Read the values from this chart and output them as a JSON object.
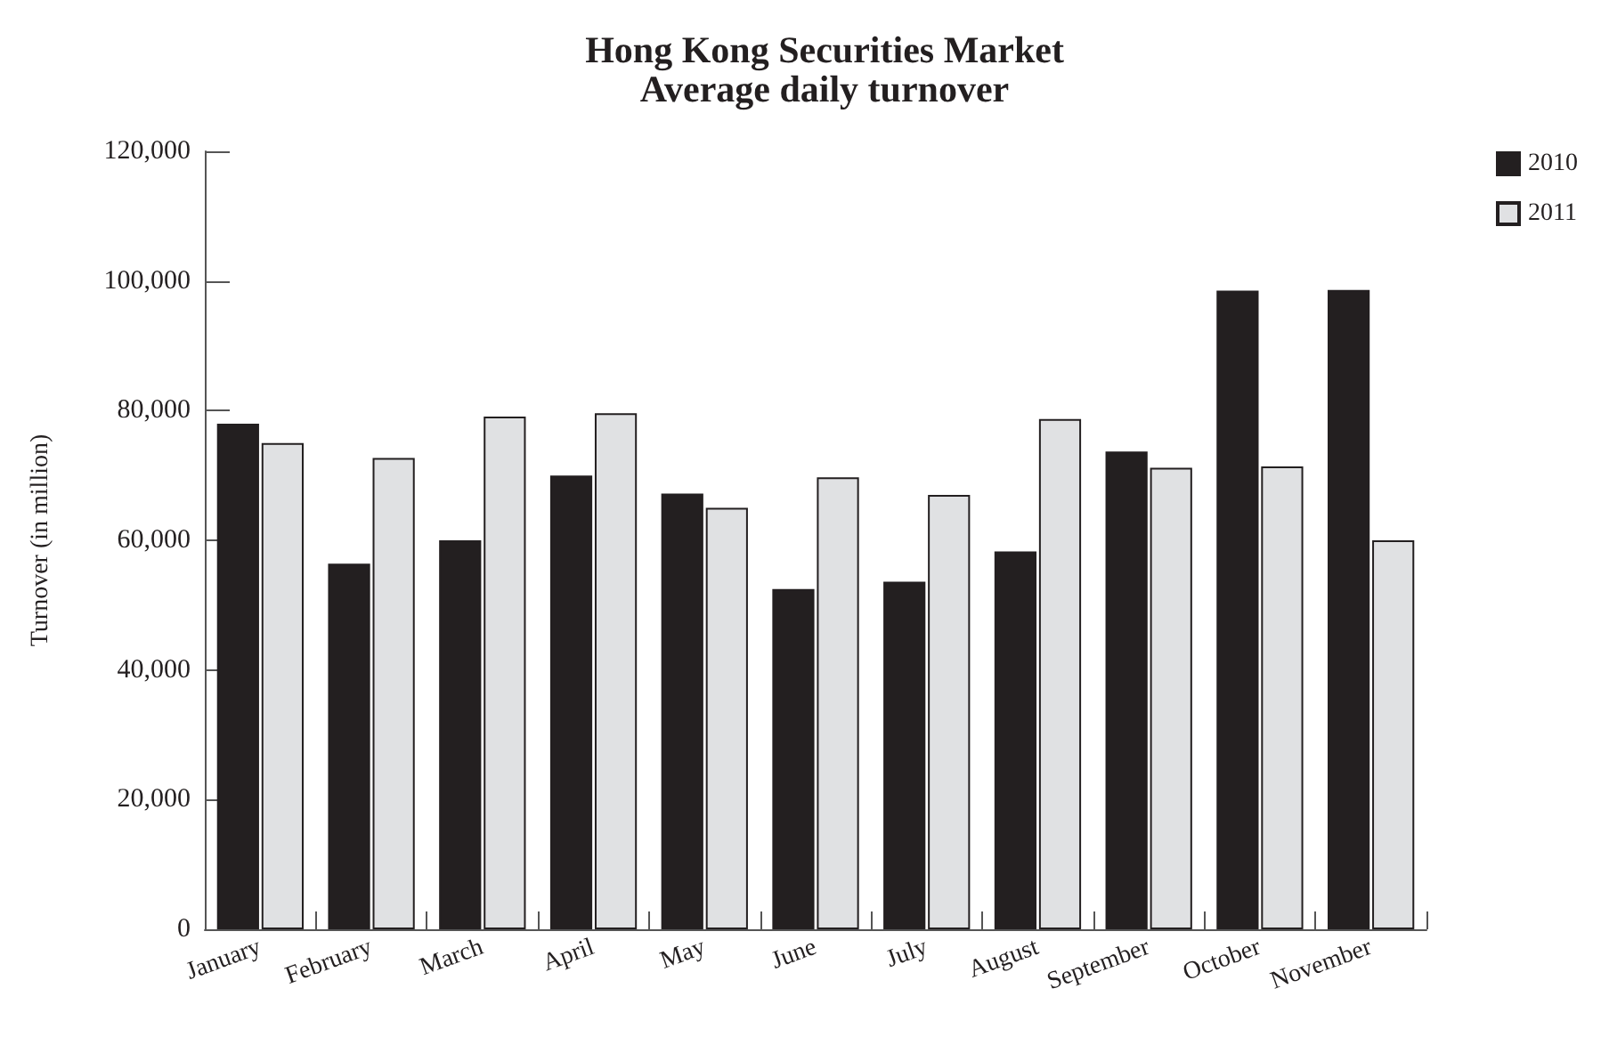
{
  "chart_data": {
    "type": "bar",
    "title": "Hong Kong Securities Market\nAverage daily turnover",
    "ylabel": "Turnover (in million)",
    "categories": [
      "January",
      "February",
      "March",
      "April",
      "May",
      "June",
      "July",
      "August",
      "September",
      "October",
      "November"
    ],
    "series": [
      {
        "name": "2010",
        "color": "#231f20",
        "values": [
          78000,
          56400,
          60000,
          70000,
          67200,
          52500,
          53600,
          58300,
          73700,
          98500,
          98600
        ]
      },
      {
        "name": "2011",
        "color": "#e0e1e3",
        "values": [
          75000,
          72700,
          79100,
          79600,
          65000,
          69700,
          67000,
          78700,
          71200,
          71400,
          60000
        ]
      }
    ],
    "ylim": [
      0,
      120000
    ],
    "yticks": [
      0,
      {
        "value": 20000,
        "label": "20,000"
      },
      {
        "value": 40000,
        "label": "40,000"
      },
      {
        "value": 60000,
        "label": "60,000"
      },
      {
        "value": 80000,
        "label": "80,000"
      },
      {
        "value": 100000,
        "label": "100,000"
      },
      {
        "value": 120000,
        "label": "120,000"
      }
    ],
    "grid": false,
    "legend": "top right"
  }
}
